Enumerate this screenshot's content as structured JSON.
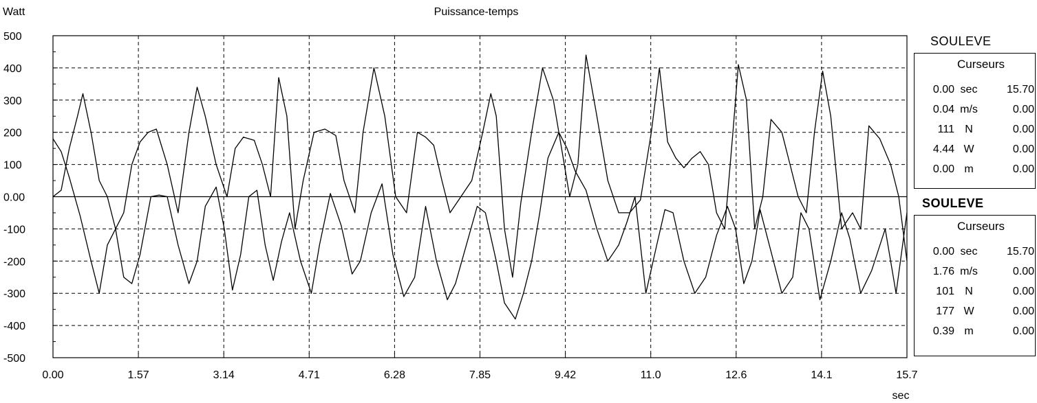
{
  "chart_data": {
    "type": "line",
    "title": "Puissance-temps",
    "ylabel": "Watt",
    "xlabel": "sec",
    "xlim": [
      0,
      15.7
    ],
    "ylim": [
      -500,
      500
    ],
    "grid": true,
    "x_ticks": [
      "0.00",
      "1.57",
      "3.14",
      "4.71",
      "6.28",
      "7.85",
      "9.42",
      "11.0",
      "12.6",
      "14.1",
      "15.7"
    ],
    "y_ticks": [
      "500",
      "400",
      "300",
      "200",
      "100",
      "0.00",
      "-100",
      "-200",
      "-300",
      "-400",
      "-500"
    ],
    "series": [
      {
        "x": [
          0,
          0.15,
          0.3,
          0.5,
          0.7,
          0.85,
          1.0,
          1.15,
          1.3,
          1.45,
          1.6,
          1.8,
          1.95,
          2.1,
          2.3,
          2.5,
          2.65,
          2.8,
          3.0,
          3.15,
          3.3,
          3.45,
          3.6,
          3.75,
          3.9,
          4.05,
          4.2,
          4.35,
          4.55,
          4.75,
          4.9,
          5.1,
          5.3,
          5.5,
          5.65,
          5.85,
          6.05,
          6.25,
          6.45,
          6.65,
          6.85,
          7.05,
          7.25,
          7.4,
          7.6,
          7.8,
          7.95,
          8.15,
          8.3,
          8.5,
          8.65,
          8.8,
          8.95,
          9.1,
          9.3,
          9.45,
          9.6,
          9.8,
          10.0,
          10.2,
          10.4,
          10.55,
          10.7,
          10.9,
          11.1,
          11.25,
          11.4,
          11.6,
          11.8,
          12.0,
          12.2,
          12.4,
          12.55,
          12.7,
          12.85,
          13.0,
          13.2,
          13.4,
          13.6,
          13.75,
          13.9,
          14.1,
          14.3,
          14.5,
          14.65,
          14.85,
          15.05,
          15.3,
          15.5,
          15.7
        ],
        "y": [
          180,
          140,
          60,
          -60,
          -200,
          -300,
          -150,
          -100,
          -250,
          -270,
          -180,
          0,
          5,
          0,
          -150,
          -270,
          -200,
          -30,
          30,
          -100,
          -290,
          -180,
          0,
          20,
          -150,
          -260,
          -140,
          -50,
          -200,
          -300,
          -150,
          10,
          -90,
          -240,
          -200,
          -50,
          40,
          -180,
          -310,
          -250,
          -30,
          -200,
          -320,
          -270,
          -150,
          -30,
          -50,
          -200,
          -330,
          -380,
          -300,
          -200,
          -50,
          120,
          200,
          150,
          80,
          20,
          -100,
          -200,
          -150,
          -80,
          0,
          -300,
          -150,
          -40,
          -50,
          -200,
          -300,
          -250,
          -120,
          -30,
          -100,
          -270,
          -200,
          -40,
          -170,
          -300,
          -250,
          -50,
          -100,
          -320,
          -200,
          -50,
          -130,
          -300,
          -230,
          -100,
          -300,
          -50
        ]
      },
      {
        "x": [
          0,
          0.15,
          0.3,
          0.45,
          0.55,
          0.7,
          0.85,
          1.0,
          1.15,
          1.3,
          1.45,
          1.6,
          1.75,
          1.9,
          2.1,
          2.3,
          2.5,
          2.65,
          2.8,
          3.0,
          3.2,
          3.35,
          3.5,
          3.7,
          3.85,
          4.0,
          4.15,
          4.3,
          4.45,
          4.6,
          4.8,
          5.0,
          5.2,
          5.35,
          5.55,
          5.7,
          5.9,
          6.1,
          6.3,
          6.5,
          6.7,
          6.85,
          7.0,
          7.15,
          7.3,
          7.5,
          7.7,
          7.9,
          8.05,
          8.15,
          8.3,
          8.45,
          8.6,
          8.8,
          9.0,
          9.2,
          9.35,
          9.5,
          9.65,
          9.8,
          10.0,
          10.2,
          10.4,
          10.6,
          10.8,
          11.0,
          11.15,
          11.3,
          11.45,
          11.6,
          11.75,
          11.9,
          12.05,
          12.2,
          12.35,
          12.5,
          12.6,
          12.75,
          12.9,
          13.05,
          13.2,
          13.4,
          13.55,
          13.7,
          13.85,
          14.0,
          14.15,
          14.3,
          14.5,
          14.7,
          14.85,
          15.0,
          15.2,
          15.4,
          15.55,
          15.7
        ],
        "y": [
          0,
          20,
          150,
          250,
          320,
          200,
          50,
          0,
          -100,
          -50,
          100,
          170,
          200,
          210,
          100,
          -50,
          200,
          340,
          250,
          100,
          0,
          150,
          185,
          175,
          100,
          0,
          370,
          250,
          -100,
          50,
          200,
          210,
          190,
          50,
          -50,
          200,
          400,
          250,
          0,
          -50,
          200,
          185,
          160,
          50,
          -50,
          0,
          50,
          200,
          320,
          250,
          -100,
          -250,
          -20,
          200,
          400,
          300,
          150,
          0,
          100,
          440,
          250,
          50,
          -50,
          -50,
          -10,
          200,
          400,
          170,
          120,
          90,
          120,
          140,
          100,
          -50,
          -100,
          200,
          410,
          300,
          -100,
          0,
          240,
          200,
          100,
          0,
          -50,
          200,
          390,
          250,
          -100,
          -50,
          -100,
          220,
          180,
          100,
          0,
          -200
        ]
      }
    ]
  },
  "panels": [
    {
      "title": "SOULEVE",
      "head": "Curseurs",
      "rows": [
        {
          "v1": "0.00",
          "unit": "sec",
          "v2": "15.70"
        },
        {
          "v1": "0.04",
          "unit": "m/s",
          "v2": "0.00"
        },
        {
          "v1": "111",
          "unit": "N",
          "v2": "0.00"
        },
        {
          "v1": "4.44",
          "unit": "W",
          "v2": "0.00"
        },
        {
          "v1": "0.00",
          "unit": "m",
          "v2": "0.00"
        }
      ]
    },
    {
      "title": "SOULEVE",
      "head": "Curseurs",
      "rows": [
        {
          "v1": "0.00",
          "unit": "sec",
          "v2": "15.70"
        },
        {
          "v1": "1.76",
          "unit": "m/s",
          "v2": "0.00"
        },
        {
          "v1": "101",
          "unit": "N",
          "v2": "0.00"
        },
        {
          "v1": "177",
          "unit": "W",
          "v2": "0.00"
        },
        {
          "v1": "0.39",
          "unit": "m",
          "v2": "0.00"
        }
      ]
    }
  ]
}
